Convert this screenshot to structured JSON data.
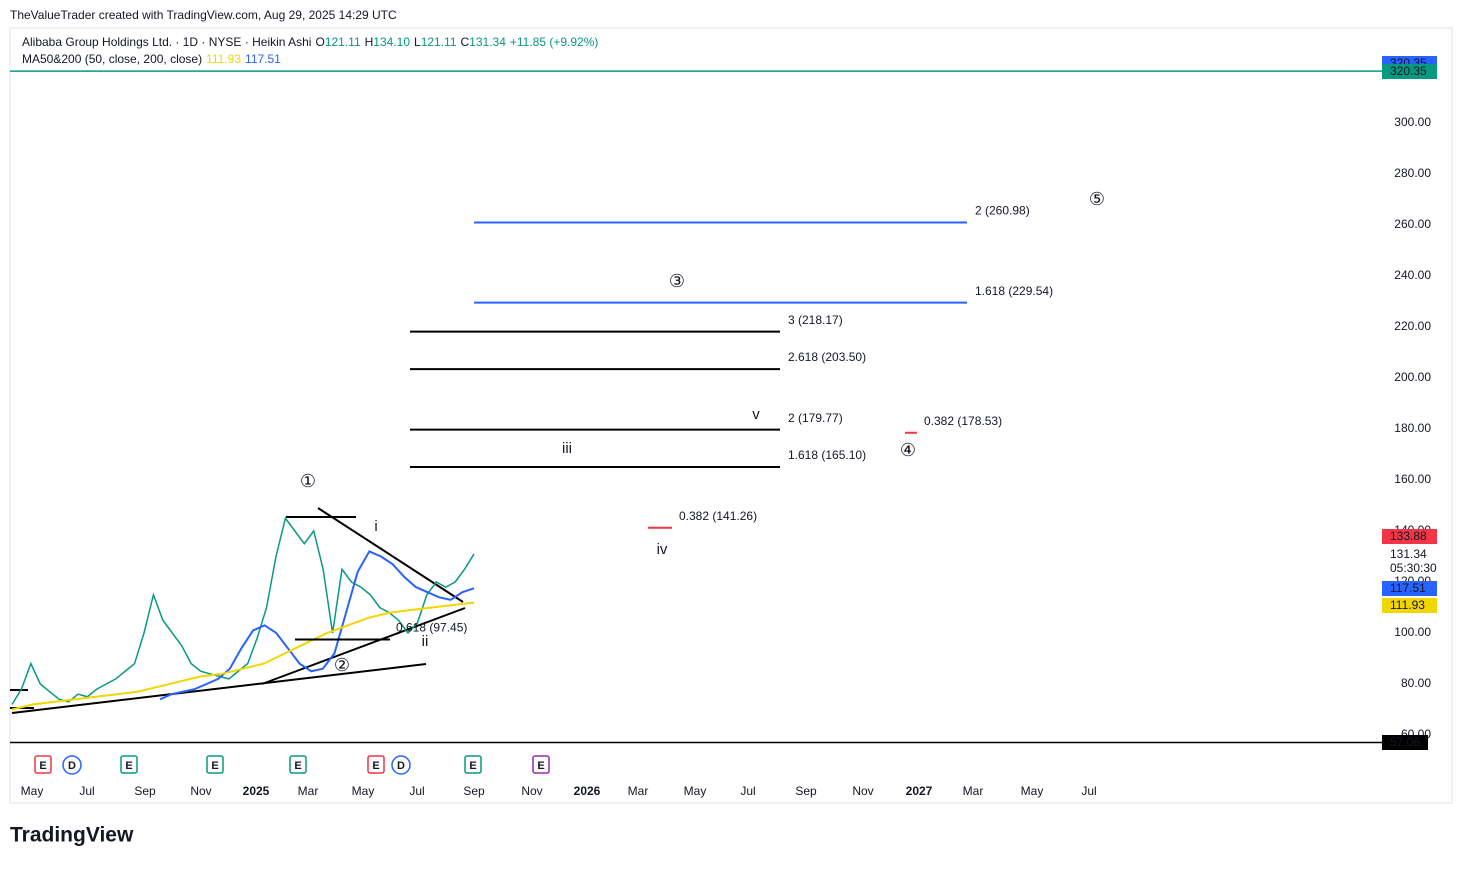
{
  "header": {
    "credit": "TheValueTrader created with TradingView.com, Aug 29, 2025 14:29 UTC",
    "logo": "TradingView"
  },
  "chart_data": {
    "type": "line",
    "symbol": "Alibaba Group Holdings Ltd. · 1D · NYSE · Heikin Ashi",
    "ohlc": [
      {
        "key": "O",
        "value": "121.11"
      },
      {
        "key": "H",
        "value": "134.10"
      },
      {
        "key": "L",
        "value": "121.11"
      },
      {
        "key": "C",
        "value": "131.34"
      }
    ],
    "change": "+11.85 (+9.92%)",
    "indicator": "MA50&200 (50, close, 200, close)",
    "indicator_values": [
      {
        "text": "111.93",
        "color": "#f2d600"
      },
      {
        "text": "117.51",
        "color": "#2962ff"
      }
    ],
    "ylim": [
      44,
      336
    ],
    "yticks": [
      {
        "value": 60,
        "label": "60.00"
      },
      {
        "value": 80,
        "label": "80.00"
      },
      {
        "value": 100,
        "label": "100.00"
      },
      {
        "value": 120,
        "label": "120.00"
      },
      {
        "value": 140,
        "label": "140.00"
      },
      {
        "value": 160,
        "label": "160.00"
      },
      {
        "value": 180,
        "label": "180.00"
      },
      {
        "value": 200,
        "label": "200.00"
      },
      {
        "value": 220,
        "label": "220.00"
      },
      {
        "value": 240,
        "label": "240.00"
      },
      {
        "value": 260,
        "label": "260.00"
      },
      {
        "value": 280,
        "label": "280.00"
      },
      {
        "value": 300,
        "label": "300.00"
      }
    ],
    "xticks": [
      "May",
      "Jul",
      "Sep",
      "Nov",
      "2025",
      "Mar",
      "May",
      "Jul",
      "Sep",
      "Nov",
      "2026",
      "Mar",
      "May",
      "Jul",
      "Sep",
      "Nov",
      "2027",
      "Mar",
      "May",
      "Jul"
    ],
    "series": [
      {
        "name": "Price",
        "color": "#089981",
        "values": [
          72,
          78,
          88,
          80,
          77,
          74,
          73,
          76,
          75,
          78,
          80,
          82,
          85,
          88,
          100,
          115,
          105,
          100,
          95,
          88,
          85,
          84,
          83,
          82,
          85,
          88,
          98,
          110,
          130,
          145,
          140,
          135,
          140,
          125,
          100,
          125,
          120,
          118,
          115,
          110,
          108,
          105,
          100,
          104,
          115,
          120,
          118,
          120,
          125,
          131
        ]
      },
      {
        "name": "MA50",
        "color": "#2962ff",
        "values": [
          74,
          76,
          77,
          78,
          80,
          82,
          86,
          94,
          101,
          103,
          100,
          94,
          88,
          85,
          86,
          92,
          108,
          124,
          132,
          130,
          127,
          122,
          118,
          116,
          114,
          113,
          116,
          117.51
        ]
      },
      {
        "name": "MA200",
        "color": "#f2d600",
        "values": [
          70,
          72,
          73,
          74,
          75,
          76,
          77,
          79,
          81,
          83,
          84,
          86,
          88,
          92,
          96,
          100,
          103,
          106,
          108,
          109,
          110,
          111,
          111.93
        ]
      }
    ],
    "levels": [
      {
        "label": "3 (218.17)",
        "value": 218.17,
        "color": "#000000"
      },
      {
        "label": "2.618 (203.50)",
        "value": 203.5,
        "color": "#000000"
      },
      {
        "label": "2 (179.77)",
        "value": 179.77,
        "color": "#000000"
      },
      {
        "label": "1.618 (165.10)",
        "value": 165.1,
        "color": "#000000"
      },
      {
        "label": "2 (260.98)",
        "value": 260.98,
        "color": "#2962ff"
      },
      {
        "label": "1.618 (229.54)",
        "value": 229.54,
        "color": "#2962ff"
      },
      {
        "label": "0.382 (141.26)",
        "value": 141.26,
        "color": "#f23645"
      },
      {
        "label": "0.382 (178.53)",
        "value": 178.53,
        "color": "#f23645"
      },
      {
        "label": "0.618 (97.45)",
        "value": 97.45,
        "color": "#000000"
      }
    ],
    "waves": [
      "①",
      "②",
      "③",
      "④",
      "⑤",
      "i",
      "ii",
      "iii",
      "iv",
      "v"
    ],
    "price_badges": [
      {
        "text": "320.35",
        "value": 320.35,
        "color": "#2962ff"
      },
      {
        "text": "320.35",
        "value": 320.35,
        "color": "#089981"
      },
      {
        "text": "133.88",
        "value": 133.88,
        "color": "#f23645"
      },
      {
        "text": "131.34",
        "value": 131.34,
        "color": "none"
      },
      {
        "text": "05:30:30",
        "value": 127.3,
        "color": "none"
      },
      {
        "text": "117.51",
        "value": 117.51,
        "color": "#2962ff"
      },
      {
        "text": "111.93",
        "value": 111.93,
        "color": "#f2d600"
      },
      {
        "text": "57.06",
        "value": 57.06,
        "color": "#000000"
      }
    ],
    "events": [
      "E",
      "D",
      "E",
      "E",
      "E",
      "E",
      "D",
      "E",
      "E"
    ]
  }
}
